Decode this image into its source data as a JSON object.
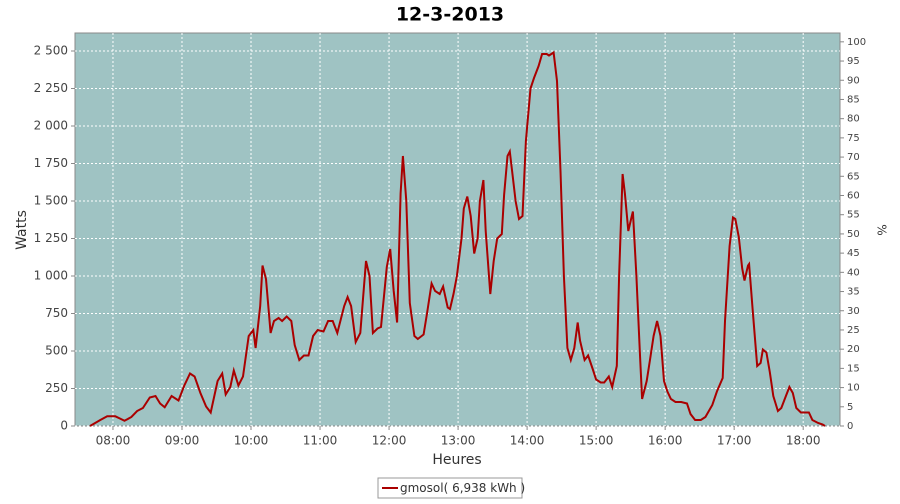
{
  "chart_data": {
    "type": "line",
    "title": "12-3-2013",
    "x_label": "Heures",
    "y_label": "Watts",
    "y2_label": "%",
    "x": [
      "07:40",
      "07:49",
      "07:55",
      "08:02",
      "08:06",
      "08:10",
      "08:16",
      "08:21",
      "08:26",
      "08:32",
      "08:37",
      "08:41",
      "08:45",
      "08:51",
      "08:57",
      "09:02",
      "09:07",
      "09:11",
      "09:16",
      "09:21",
      "09:25",
      "09:31",
      "09:35",
      "09:38",
      "09:42",
      "09:45",
      "09:49",
      "09:53",
      "09:58",
      "10:02",
      "10:04",
      "10:08",
      "10:10",
      "10:13",
      "10:17",
      "10:20",
      "10:24",
      "10:27",
      "10:31",
      "10:35",
      "10:38",
      "10:42",
      "10:46",
      "10:50",
      "10:54",
      "10:58",
      "11:03",
      "11:07",
      "11:11",
      "11:15",
      "11:21",
      "11:24",
      "11:27",
      "11:31",
      "11:35",
      "11:40",
      "11:43",
      "11:46",
      "11:50",
      "11:53",
      "11:58",
      "12:01",
      "12:04",
      "12:07",
      "12:10",
      "12:12",
      "12:15",
      "12:18",
      "12:22",
      "12:25",
      "12:30",
      "12:33",
      "12:37",
      "12:40",
      "12:44",
      "12:47",
      "12:51",
      "12:53",
      "12:56",
      "12:59",
      "13:03",
      "13:05",
      "13:08",
      "13:11",
      "13:14",
      "13:17",
      "13:19",
      "13:22",
      "13:24",
      "13:28",
      "13:31",
      "13:34",
      "13:38",
      "13:40",
      "13:43",
      "13:45",
      "13:47",
      "13:50",
      "13:53",
      "13:56",
      "13:59",
      "14:03",
      "14:06",
      "14:10",
      "14:13",
      "14:17",
      "14:19",
      "14:23",
      "14:26",
      "14:29",
      "14:32",
      "14:35",
      "14:38",
      "14:41",
      "14:44",
      "14:46",
      "14:50",
      "14:53",
      "14:57",
      "15:00",
      "15:04",
      "15:07",
      "15:11",
      "15:14",
      "15:18",
      "15:20",
      "15:23",
      "15:25",
      "15:28",
      "15:31",
      "15:32",
      "15:35",
      "15:38",
      "15:40",
      "15:44",
      "15:47",
      "15:50",
      "15:53",
      "15:56",
      "15:59",
      "16:02",
      "16:05",
      "16:09",
      "16:14",
      "16:19",
      "16:22",
      "16:26",
      "16:31",
      "16:35",
      "16:41",
      "16:45",
      "16:50",
      "16:52",
      "16:56",
      "16:59",
      "17:01",
      "17:04",
      "17:07",
      "17:09",
      "17:12",
      "17:13",
      "17:16",
      "17:20",
      "17:23",
      "17:25",
      "17:28",
      "17:31",
      "17:34",
      "17:38",
      "17:41",
      "17:45",
      "17:48",
      "17:51",
      "17:54",
      "17:58",
      "18:01",
      "18:05",
      "18:08",
      "18:13",
      "18:17",
      "18:19"
    ],
    "series": [
      {
        "name": "gmosol( 6,938 kWh )",
        "color": "#aa0000",
        "values": [
          0,
          40,
          65,
          65,
          50,
          35,
          60,
          100,
          120,
          190,
          200,
          150,
          125,
          200,
          170,
          270,
          350,
          330,
          220,
          130,
          90,
          300,
          350,
          210,
          260,
          370,
          270,
          330,
          600,
          640,
          520,
          800,
          1070,
          980,
          620,
          700,
          720,
          700,
          730,
          700,
          540,
          440,
          470,
          470,
          600,
          640,
          630,
          700,
          700,
          620,
          800,
          860,
          800,
          560,
          620,
          1100,
          1000,
          620,
          650,
          660,
          1060,
          1180,
          900,
          690,
          1550,
          1800,
          1500,
          820,
          600,
          580,
          610,
          750,
          950,
          900,
          880,
          930,
          790,
          780,
          880,
          1000,
          1250,
          1450,
          1530,
          1400,
          1150,
          1250,
          1500,
          1640,
          1300,
          880,
          1100,
          1250,
          1280,
          1540,
          1800,
          1830,
          1700,
          1500,
          1380,
          1400,
          1900,
          2250,
          2320,
          2400,
          2480,
          2480,
          2470,
          2490,
          2300,
          1700,
          1000,
          520,
          440,
          520,
          690,
          570,
          440,
          470,
          380,
          310,
          290,
          290,
          330,
          260,
          400,
          1000,
          1680,
          1550,
          1300,
          1400,
          1430,
          1000,
          500,
          180,
          300,
          450,
          600,
          700,
          600,
          300,
          230,
          180,
          160,
          160,
          150,
          80,
          40,
          40,
          60,
          140,
          230,
          320,
          700,
          1200,
          1390,
          1380,
          1260,
          1050,
          970,
          1070,
          1080,
          780,
          400,
          420,
          510,
          490,
          360,
          200,
          100,
          120,
          200,
          260,
          220,
          120,
          90,
          90,
          90,
          40,
          20,
          10,
          0
        ]
      }
    ],
    "xlim": [
      "07:27",
      "18:32"
    ],
    "xticks": [
      "08:00",
      "09:00",
      "10:00",
      "11:00",
      "12:00",
      "13:00",
      "14:00",
      "15:00",
      "16:00",
      "17:00",
      "18:00"
    ],
    "ylim": [
      0,
      2620
    ],
    "yticks": [
      0,
      250,
      500,
      750,
      {
        "value": 1000,
        "label": "1 000"
      },
      {
        "value": 1250,
        "label": "1 250"
      },
      {
        "value": 1500,
        "label": "1 500"
      },
      {
        "value": 1750,
        "label": "1 750"
      },
      {
        "value": 2000,
        "label": "2 000"
      },
      {
        "value": 2250,
        "label": "2 250"
      },
      {
        "value": 2500,
        "label": "2 500"
      }
    ],
    "y2lim": [
      0,
      102.3
    ],
    "y2ticks": [
      0,
      5,
      10,
      15,
      20,
      25,
      30,
      35,
      40,
      45,
      50,
      55,
      60,
      65,
      70,
      75,
      80,
      85,
      90,
      95,
      100
    ],
    "grid": true,
    "plot_background": "#9fc3c3"
  }
}
